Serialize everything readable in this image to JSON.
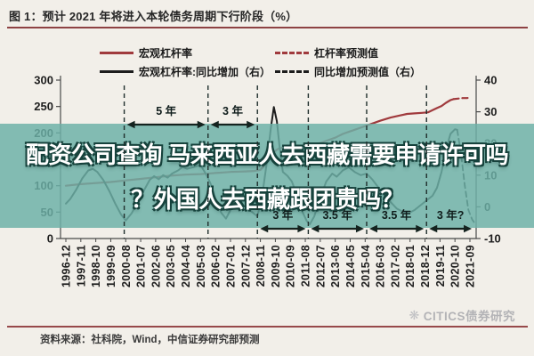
{
  "header": {
    "title": "图 1：预计 2021 年将进入本轮债务周期下行阶段（%）",
    "underline_color": "#8e4243"
  },
  "overlay_banner": {
    "line1": "配资公司查询 马来西亚人去西藏需要申请许可吗",
    "line2": "？外国人去西藏跟团贵吗？",
    "bg_color": "#6db0a7",
    "text_color": "#ffffff"
  },
  "watermark": {
    "logo": "❋",
    "text": "CITICS债券研究"
  },
  "footer": {
    "source": "资料来源：社科院，Wind，中信证券研究部预测"
  },
  "colors": {
    "leverage_red": "#a03a3d",
    "yoy_black": "#1c1c1c",
    "rule_red": "#97494a",
    "page_bg": "#f2efe9",
    "banner_teal": "#6db0a7"
  },
  "chart_data": {
    "type": "line",
    "title": "图 1：预计 2021 年将进入本轮债务周期下行阶段（%）",
    "xlabel": "",
    "ylabel": "",
    "grid": false,
    "legend_position": "top",
    "x_labels": [
      "1996-12",
      "1997-11",
      "1998-10",
      "1999-09",
      "2000-08",
      "2001-07",
      "2002-06",
      "2003-05",
      "2004-04",
      "2005-03",
      "2006-02",
      "2007-01",
      "2007-12",
      "2008-11",
      "2009-10",
      "2010-09",
      "2011-08",
      "2012-07",
      "2013-06",
      "2014-05",
      "2015-04",
      "2016-03",
      "2017-02",
      "2018-01",
      "2018-12",
      "2019-11",
      "2020-10",
      "2021-09"
    ],
    "left_axis": {
      "min": 0,
      "max": 300,
      "ticks": [
        0,
        50,
        100,
        150,
        200,
        250,
        300
      ]
    },
    "right_axis": {
      "min": -10,
      "max": 40,
      "ticks": [
        -10,
        0,
        10,
        20,
        30,
        40
      ]
    },
    "series": [
      {
        "name": "宏观杠杆率",
        "axis": "left",
        "dashed": false,
        "color": "#a03a3d",
        "width": 2.2,
        "points": [
          [
            0,
            100
          ],
          [
            1,
            103
          ],
          [
            2,
            105
          ],
          [
            3,
            107
          ],
          [
            4,
            110
          ],
          [
            5,
            113
          ],
          [
            6,
            116
          ],
          [
            7,
            119
          ],
          [
            8,
            121
          ],
          [
            9,
            122
          ],
          [
            10,
            124
          ],
          [
            11,
            126
          ],
          [
            12,
            127
          ],
          [
            12.6,
            128
          ],
          [
            13,
            130
          ],
          [
            13.3,
            139
          ],
          [
            13.6,
            152
          ],
          [
            13.9,
            164
          ],
          [
            14.2,
            170
          ],
          [
            14.6,
            173
          ],
          [
            15,
            174
          ],
          [
            15.5,
            175
          ],
          [
            16,
            176
          ],
          [
            16.5,
            178
          ],
          [
            17,
            181
          ],
          [
            17.5,
            186
          ],
          [
            18,
            191
          ],
          [
            18.5,
            198
          ],
          [
            19,
            203
          ],
          [
            19.5,
            208
          ],
          [
            20,
            213
          ],
          [
            20.5,
            218
          ],
          [
            21,
            223
          ],
          [
            21.7,
            229
          ],
          [
            22.3,
            233
          ],
          [
            22.8,
            236
          ],
          [
            23.3,
            237
          ],
          [
            23.8,
            238
          ],
          [
            24.2,
            239
          ],
          [
            24.5,
            243
          ],
          [
            24.8,
            247
          ],
          [
            25.1,
            251
          ],
          [
            25.4,
            257
          ],
          [
            25.7,
            262
          ],
          [
            25.9,
            264
          ]
        ]
      },
      {
        "name": "杠杆率预测值",
        "axis": "left",
        "dashed": true,
        "color": "#a03a3d",
        "width": 2.2,
        "points": [
          [
            25.9,
            264
          ],
          [
            26.2,
            265
          ],
          [
            26.5,
            266
          ],
          [
            26.8,
            266
          ],
          [
            27.05,
            267
          ]
        ]
      },
      {
        "name": "宏观杠杆率:同比增加（右）",
        "axis": "right",
        "dashed": false,
        "color": "#1c1c1c",
        "width": 2,
        "points": [
          [
            0,
            1
          ],
          [
            0.3,
            2.5
          ],
          [
            0.7,
            5.5
          ],
          [
            1.1,
            9
          ],
          [
            1.5,
            11.5
          ],
          [
            1.8,
            12
          ],
          [
            2.1,
            11
          ],
          [
            2.5,
            8.5
          ],
          [
            2.9,
            5
          ],
          [
            3.3,
            1
          ],
          [
            3.7,
            -2.5
          ],
          [
            4,
            -4.3
          ],
          [
            4.4,
            -2
          ],
          [
            4.8,
            1.5
          ],
          [
            5.2,
            5
          ],
          [
            5.6,
            8.5
          ],
          [
            5.9,
            9.7
          ],
          [
            6.2,
            8.7
          ],
          [
            6.5,
            10
          ],
          [
            6.8,
            9.2
          ],
          [
            7.1,
            10.5
          ],
          [
            7.5,
            11.5
          ],
          [
            7.8,
            12.6
          ],
          [
            8.1,
            12
          ],
          [
            8.5,
            12.5
          ],
          [
            9,
            13.2
          ],
          [
            9.4,
            10
          ],
          [
            9.7,
            7
          ],
          [
            10.1,
            1
          ],
          [
            10.4,
            -2
          ],
          [
            10.7,
            -3.7
          ],
          [
            11,
            -1
          ],
          [
            11.3,
            1.8
          ],
          [
            11.7,
            1
          ],
          [
            12,
            0
          ],
          [
            12.4,
            -1.5
          ],
          [
            12.8,
            -3
          ],
          [
            13.1,
            3
          ],
          [
            13.4,
            13
          ],
          [
            13.7,
            25
          ],
          [
            13.9,
            31.5
          ],
          [
            14.1,
            27
          ],
          [
            14.3,
            18
          ],
          [
            14.5,
            11
          ],
          [
            14.8,
            9.8
          ],
          [
            15.1,
            8
          ],
          [
            15.5,
            3
          ],
          [
            15.8,
            -1.5
          ],
          [
            16.1,
            -4.5
          ],
          [
            16.3,
            -5.5
          ],
          [
            16.6,
            -3
          ],
          [
            17,
            3
          ],
          [
            17.4,
            8
          ],
          [
            17.8,
            10.5
          ],
          [
            18.1,
            9.5
          ],
          [
            18.5,
            11.5
          ],
          [
            18.9,
            12.5
          ],
          [
            19.3,
            11
          ],
          [
            19.7,
            10
          ],
          [
            20.1,
            10.5
          ],
          [
            20.5,
            8.5
          ],
          [
            20.9,
            6
          ],
          [
            21.3,
            3.5
          ],
          [
            21.7,
            1.5
          ],
          [
            22.1,
            -0.5
          ],
          [
            22.5,
            -1.5
          ],
          [
            22.9,
            -2
          ],
          [
            23.3,
            -1
          ],
          [
            23.7,
            0.5
          ],
          [
            24.1,
            2
          ],
          [
            24.5,
            3.5
          ],
          [
            24.8,
            6
          ],
          [
            25.1,
            11
          ],
          [
            25.4,
            18
          ],
          [
            25.7,
            23
          ],
          [
            26,
            24.5
          ],
          [
            26.15,
            24.3
          ]
        ]
      },
      {
        "name": "同比增加预测值（右）",
        "axis": "right",
        "dashed": true,
        "color": "#1c1c1c",
        "width": 1.8,
        "points": [
          [
            26.15,
            24.3
          ],
          [
            26.4,
            17
          ],
          [
            26.65,
            7
          ],
          [
            26.9,
            -1
          ],
          [
            27.15,
            -4
          ],
          [
            27.3,
            -5
          ]
        ]
      }
    ],
    "cycle_annotations": {
      "dividers": [
        3.9,
        9.5,
        12.8,
        16.2,
        20.1,
        24.1
      ],
      "spans": [
        {
          "from": 3.9,
          "to": 9.5,
          "label": "5 年",
          "position": "top"
        },
        {
          "from": 9.5,
          "to": 12.8,
          "label": "3 年",
          "position": "top"
        },
        {
          "from": 12.8,
          "to": 16.2,
          "label": "3 年",
          "position": "bottom"
        },
        {
          "from": 16.2,
          "to": 20.1,
          "label": "3.5 年",
          "position": "bottom"
        },
        {
          "from": 20.1,
          "to": 24.1,
          "label": "3.5 年",
          "position": "bottom"
        },
        {
          "from": 24.1,
          "to": 27.3,
          "label": "3 年?",
          "position": "bottom"
        }
      ]
    }
  }
}
